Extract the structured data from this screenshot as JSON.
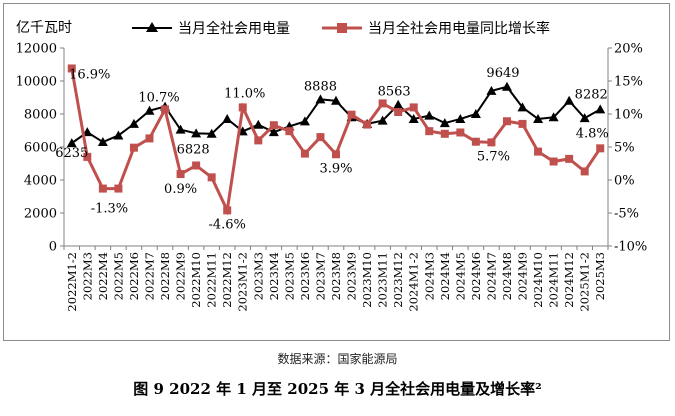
{
  "caption": "图 9 2022 年 1 月至 2025 年 3 月全社会用电量及增长率²",
  "source": "数据来源：国家能源局",
  "chart_data": {
    "type": "line",
    "unit_label": "亿千瓦时",
    "categories": [
      "2022M1-2",
      "2022M3",
      "2022M4",
      "2022M5",
      "2022M6",
      "2022M7",
      "2022M8",
      "2022M9",
      "2022M10",
      "2022M11",
      "2022M12",
      "2023M1-2",
      "2023M3",
      "2023M4",
      "2023M5",
      "2023M6",
      "2023M7",
      "2023M8",
      "2023M9",
      "2023M10",
      "2023M11",
      "2023M12",
      "2024M1-2",
      "2024M3",
      "2024M4",
      "2024M5",
      "2024M6",
      "2024M7",
      "2024M8",
      "2024M9",
      "2024M10",
      "2024M11",
      "2024M12",
      "2025M1-2",
      "2025M3"
    ],
    "series": [
      {
        "name": "当月全社会用电量",
        "axis": "left",
        "color": "#000000",
        "marker": "triangle",
        "values": [
          6235,
          6900,
          6300,
          6700,
          7400,
          8200,
          8450,
          7050,
          6828,
          6800,
          7700,
          6950,
          7350,
          6900,
          7250,
          7550,
          8888,
          8800,
          7800,
          7400,
          7600,
          8563,
          7700,
          7900,
          7450,
          7700,
          8000,
          9400,
          9649,
          8400,
          7700,
          7800,
          8800,
          7750,
          8282
        ]
      },
      {
        "name": "当月全社会用电量同比增长率",
        "axis": "right",
        "color": "#c0504d",
        "marker": "square",
        "values": [
          16.9,
          3.5,
          -1.3,
          -1.3,
          4.9,
          6.3,
          10.7,
          0.9,
          2.2,
          0.4,
          -4.6,
          11.0,
          6.0,
          8.3,
          7.4,
          4.0,
          6.5,
          3.9,
          9.9,
          8.4,
          11.6,
          10.3,
          11.0,
          7.4,
          7.0,
          7.2,
          5.8,
          5.7,
          8.9,
          8.5,
          4.3,
          2.8,
          3.2,
          1.3,
          4.8
        ]
      }
    ],
    "left_axis": {
      "min": 0,
      "max": 12000,
      "step": 2000
    },
    "right_axis": {
      "min": -10,
      "max": 20,
      "step": 5,
      "format": "percent"
    },
    "left_tick_labels": [
      "0",
      "2000",
      "4000",
      "6000",
      "8000",
      "10000",
      "12000"
    ],
    "right_tick_labels": [
      "-10%",
      "-5%",
      "0%",
      "5%",
      "10%",
      "15%",
      "20%"
    ],
    "value_labels": [
      {
        "series": 0,
        "index": 0,
        "text": "6235"
      },
      {
        "series": 0,
        "index": 8,
        "text": "6828"
      },
      {
        "series": 0,
        "index": 16,
        "text": "8888"
      },
      {
        "series": 0,
        "index": 21,
        "text": "8563"
      },
      {
        "series": 0,
        "index": 28,
        "text": "9649"
      },
      {
        "series": 0,
        "index": 34,
        "text": "8282"
      },
      {
        "series": 1,
        "index": 0,
        "text": "16.9%"
      },
      {
        "series": 1,
        "index": 3,
        "text": "-1.3%"
      },
      {
        "series": 1,
        "index": 6,
        "text": "10.7%"
      },
      {
        "series": 1,
        "index": 7,
        "text": "0.9%"
      },
      {
        "series": 1,
        "index": 10,
        "text": "-4.6%"
      },
      {
        "series": 1,
        "index": 11,
        "text": "11.0%"
      },
      {
        "series": 1,
        "index": 17,
        "text": "3.9%"
      },
      {
        "series": 1,
        "index": 27,
        "text": "5.7%"
      },
      {
        "series": 1,
        "index": 34,
        "text": "4.8%"
      }
    ],
    "grid": false,
    "legend": "top"
  }
}
